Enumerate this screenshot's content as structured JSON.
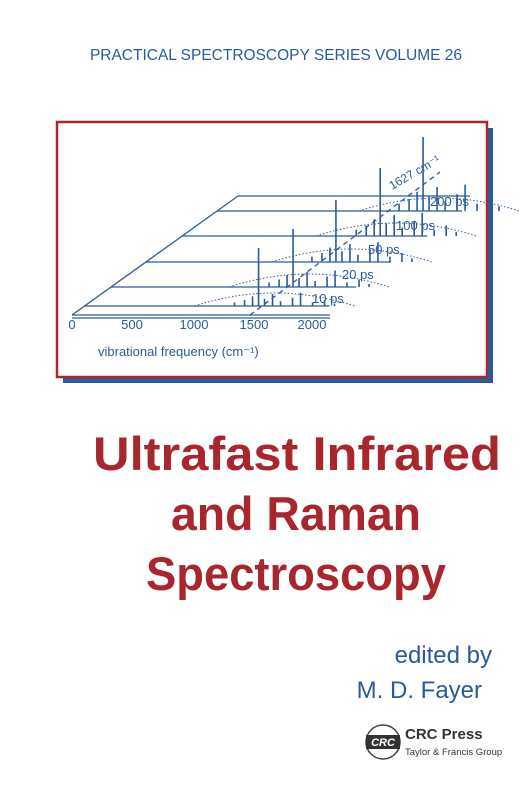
{
  "header": {
    "series": "PRACTICAL SPECTROSCOPY SERIES VOLUME 26"
  },
  "figure": {
    "x_ticks": [
      "0",
      "500",
      "1000",
      "1500",
      "2000"
    ],
    "x_label": "vibrational frequency (cm⁻¹)",
    "delays": [
      "10 ps",
      "20 ps",
      "50 ps",
      "100 ps",
      "200 ps"
    ],
    "peak_label": "1627 cm⁻¹"
  },
  "title": {
    "lines": [
      "Ultrafast Infrared",
      "and Raman",
      "Spectroscopy"
    ]
  },
  "editor": {
    "prefix": "edited by",
    "name": "M. D. Fayer"
  },
  "publisher": {
    "logo": "CRC",
    "name": "CRC Press",
    "group": "Taylor & Francis Group"
  }
}
